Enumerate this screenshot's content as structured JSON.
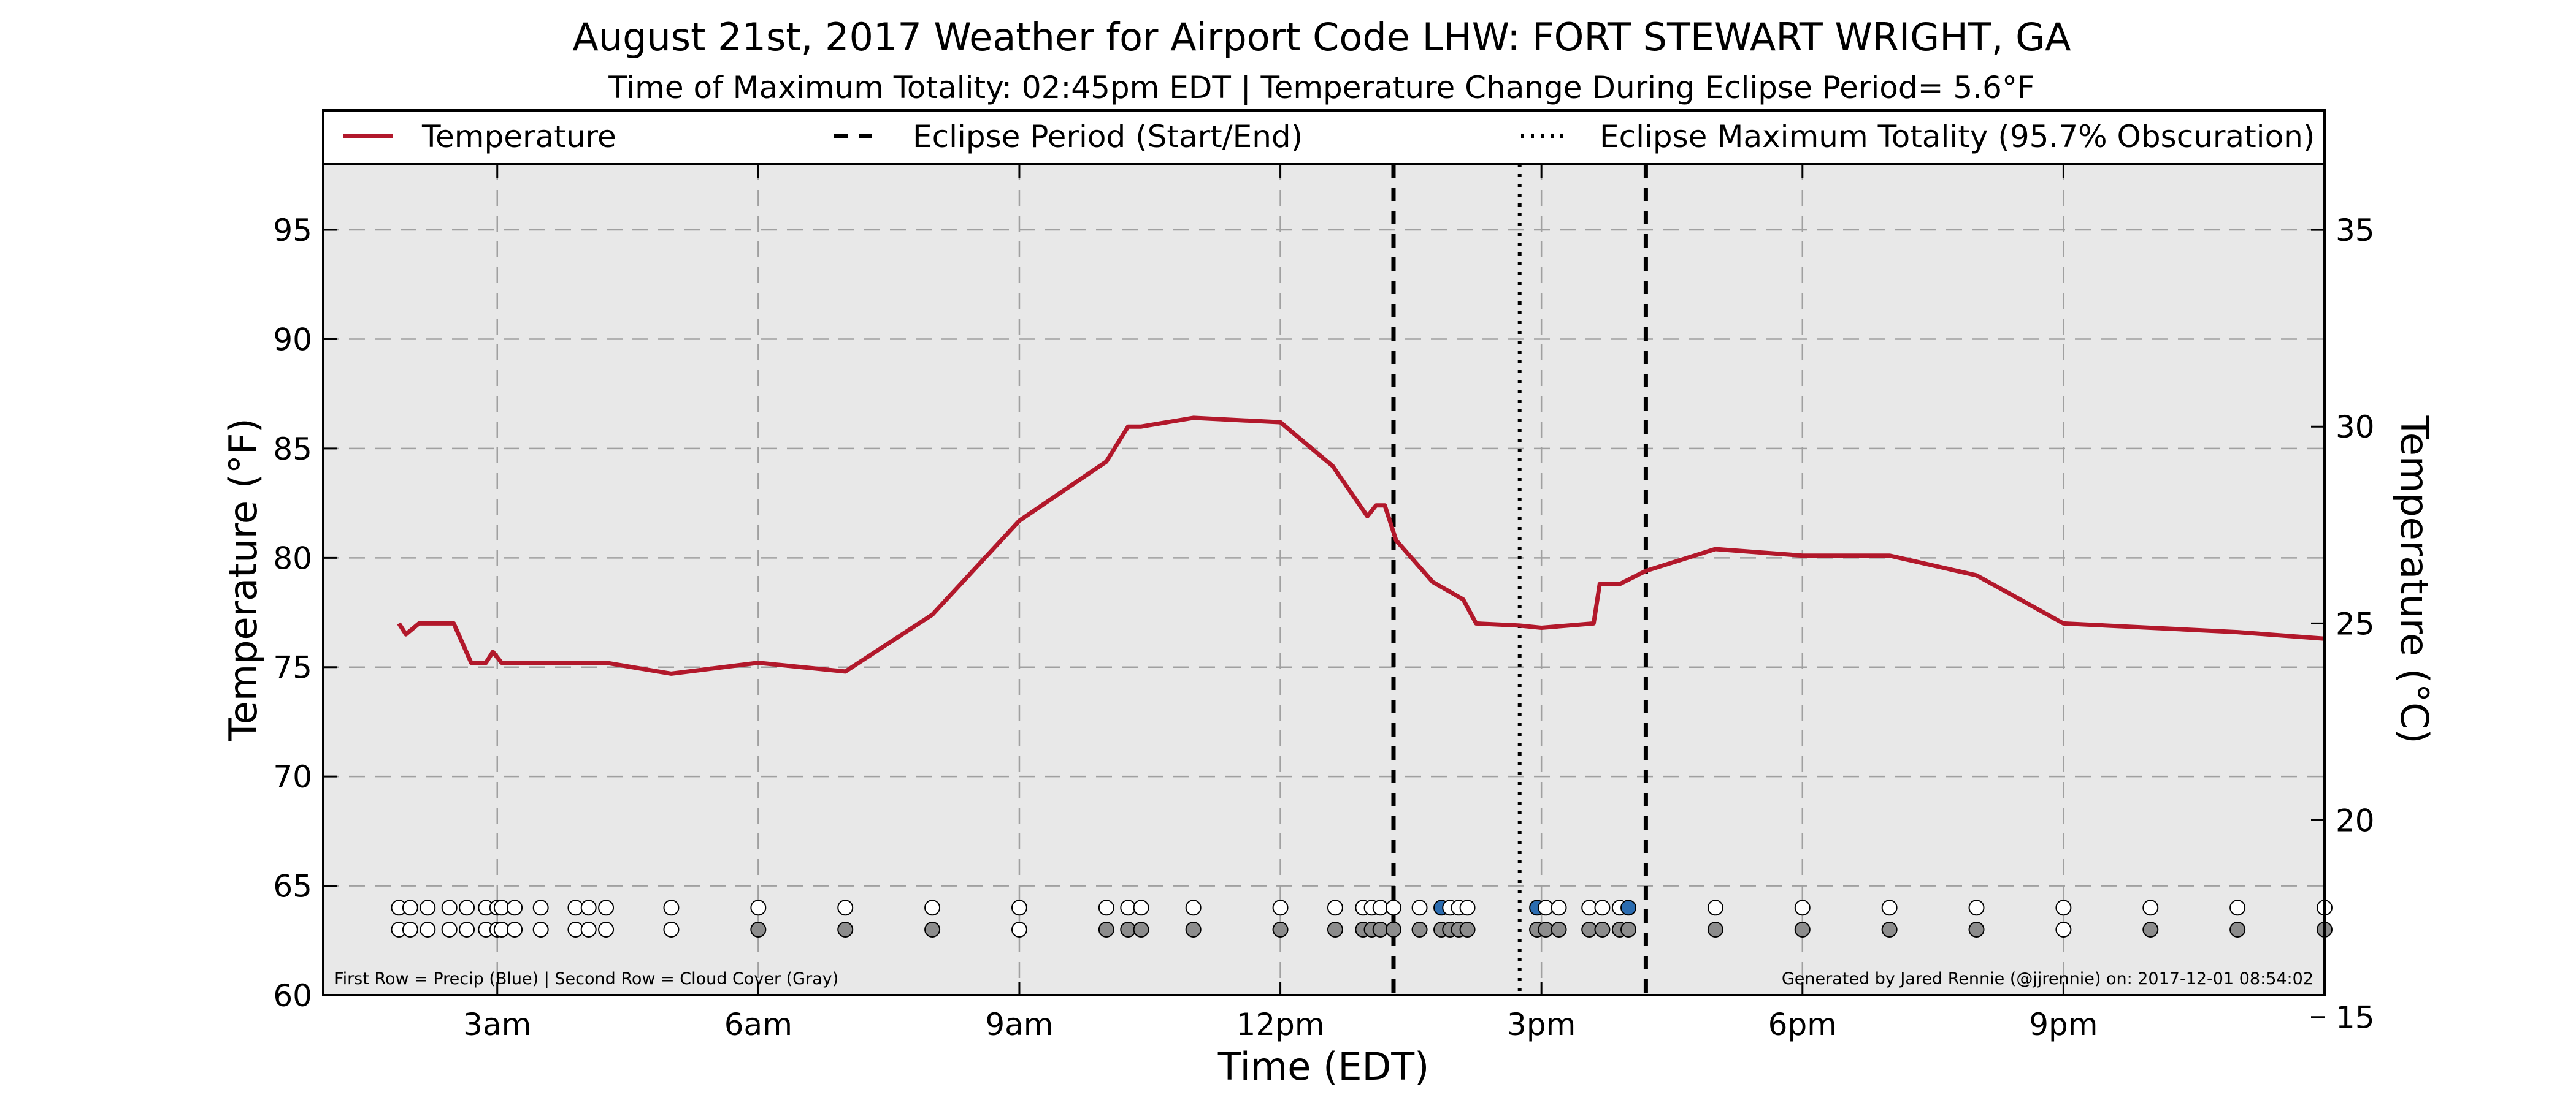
{
  "title": "August 21st, 2017 Weather for Airport Code LHW: FORT STEWART WRIGHT, GA",
  "subtitle": "Time of Maximum Totality: 02:45pm EDT | Temperature Change During Eclipse Period= 5.6°F",
  "xlabel": "Time (EDT)",
  "ylabel_left": "Temperature (°F)",
  "ylabel_right": "Temperature (°C)",
  "footer_left": "First Row = Precip (Blue) | Second Row = Cloud Cover (Gray)",
  "footer_right": "Generated by Jared Rennie (@jjrennie) on: 2017-12-01 08:54:02",
  "legend": [
    {
      "label": "Temperature",
      "style": "solid",
      "color": "#b2182b"
    },
    {
      "label": "Eclipse Period (Start/End)",
      "style": "dashed",
      "color": "#000000"
    },
    {
      "label": "Eclipse Maximum Totality (95.7% Obscuration)",
      "style": "dotted",
      "color": "#000000"
    }
  ],
  "colors": {
    "temperature": "#b2182b",
    "plot_background": "#e8e8e8",
    "precip": "#2b6cb0",
    "cloud_cover": "#8c8c8c",
    "empty_marker": "#ffffff"
  },
  "chart_data": {
    "type": "line",
    "xlim": [
      1.0,
      24.0
    ],
    "ylim": [
      60,
      98
    ],
    "ylim_celsius": [
      15.556,
      36.667
    ],
    "x_ticks": [
      {
        "x": 3,
        "label": "3am"
      },
      {
        "x": 6,
        "label": "6am"
      },
      {
        "x": 9,
        "label": "9am"
      },
      {
        "x": 12,
        "label": "12pm"
      },
      {
        "x": 15,
        "label": "3pm"
      },
      {
        "x": 18,
        "label": "6pm"
      },
      {
        "x": 21,
        "label": "9pm"
      }
    ],
    "y_ticks": [
      "60",
      "65",
      "70",
      "75",
      "80",
      "85",
      "90",
      "95"
    ],
    "y_ticks_celsius": [
      "15",
      "20",
      "25",
      "30",
      "35"
    ],
    "grid": true,
    "legend_position": "top",
    "series": [
      {
        "name": "Temperature",
        "x": [
          1.87,
          1.95,
          2.1,
          2.25,
          2.5,
          2.7,
          2.87,
          2.95,
          3.05,
          4.0,
          4.25,
          5.0,
          6.0,
          7.0,
          8.0,
          9.0,
          10.0,
          10.25,
          10.4,
          11.0,
          12.0,
          12.6,
          13.0,
          13.1,
          13.2,
          13.33,
          13.75,
          14.1,
          14.25,
          14.75,
          15.0,
          15.6,
          15.67,
          15.9,
          16.2,
          17.0,
          18.0,
          19.0,
          20.0,
          21.0,
          22.0,
          23.0,
          24.0
        ],
        "y": [
          77.0,
          76.5,
          77.0,
          77.0,
          77.0,
          75.2,
          75.2,
          75.7,
          75.2,
          75.2,
          75.2,
          74.7,
          75.2,
          74.8,
          77.4,
          81.7,
          84.4,
          86.0,
          86.0,
          86.4,
          86.2,
          84.2,
          81.9,
          82.4,
          82.4,
          80.8,
          78.9,
          78.1,
          77.0,
          76.9,
          76.8,
          77.0,
          78.8,
          78.8,
          79.4,
          80.4,
          80.1,
          80.1,
          79.2,
          77.0,
          76.8,
          76.6,
          76.3
        ]
      }
    ],
    "eclipse_start": 13.3,
    "eclipse_end": 16.2,
    "eclipse_max": 14.75,
    "obs_rows": {
      "precip_y": 64.0,
      "cloud_y": 63.0,
      "times": [
        1.87,
        2.0,
        2.2,
        2.45,
        2.65,
        2.87,
        3.0,
        3.05,
        3.2,
        3.5,
        3.9,
        4.05,
        4.25,
        5.0,
        6.0,
        7.0,
        8.0,
        9.0,
        10.0,
        10.25,
        10.4,
        11.0,
        12.0,
        12.63,
        12.95,
        13.05,
        13.15,
        13.3,
        13.6,
        13.85,
        13.95,
        14.05,
        14.15,
        14.95,
        15.05,
        15.2,
        15.55,
        15.7,
        15.9,
        16.0,
        17.0,
        18.0,
        19.0,
        20.0,
        21.0,
        22.0,
        23.0,
        24.0
      ],
      "precip": [
        0,
        0,
        0,
        0,
        0,
        0,
        0,
        0,
        0,
        0,
        0,
        0,
        0,
        0,
        0,
        0,
        0,
        0,
        0,
        0,
        0,
        0,
        0,
        0,
        0,
        0,
        0,
        0,
        0,
        1,
        0,
        0,
        0,
        1,
        0,
        0,
        0,
        0,
        0,
        1,
        0,
        0,
        0,
        0,
        0,
        0,
        0,
        0
      ],
      "cloud": [
        0,
        0,
        0,
        0,
        0,
        0,
        0,
        0,
        0,
        0,
        0,
        0,
        0,
        0,
        1,
        1,
        1,
        0,
        1,
        1,
        1,
        1,
        1,
        1,
        1,
        1,
        1,
        1,
        1,
        1,
        1,
        1,
        1,
        1,
        1,
        1,
        1,
        1,
        1,
        1,
        1,
        1,
        1,
        1,
        0,
        1,
        1,
        1
      ]
    }
  }
}
